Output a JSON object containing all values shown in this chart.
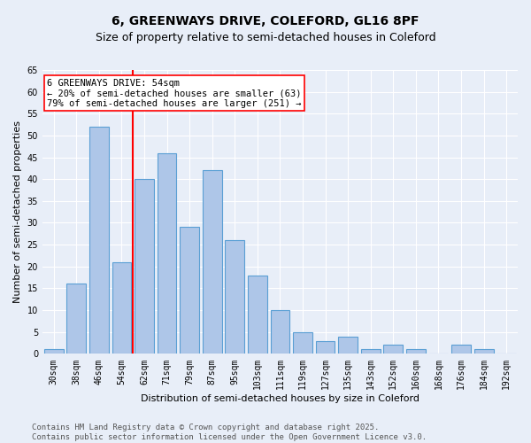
{
  "title1": "6, GREENWAYS DRIVE, COLEFORD, GL16 8PF",
  "title2": "Size of property relative to semi-detached houses in Coleford",
  "xlabel": "Distribution of semi-detached houses by size in Coleford",
  "ylabel": "Number of semi-detached properties",
  "categories": [
    "30sqm",
    "38sqm",
    "46sqm",
    "54sqm",
    "62sqm",
    "71sqm",
    "79sqm",
    "87sqm",
    "95sqm",
    "103sqm",
    "111sqm",
    "119sqm",
    "127sqm",
    "135sqm",
    "143sqm",
    "152sqm",
    "160sqm",
    "168sqm",
    "176sqm",
    "184sqm",
    "192sqm"
  ],
  "values": [
    1,
    16,
    52,
    21,
    40,
    46,
    29,
    42,
    26,
    18,
    10,
    5,
    3,
    4,
    1,
    2,
    1,
    0,
    2,
    1,
    0
  ],
  "bar_color": "#aec6e8",
  "bar_edge_color": "#5a9fd4",
  "background_color": "#e8eef8",
  "grid_color": "#ffffff",
  "annotation_text_line1": "6 GREENWAYS DRIVE: 54sqm",
  "annotation_text_line2": "← 20% of semi-detached houses are smaller (63)",
  "annotation_text_line3": "79% of semi-detached houses are larger (251) →",
  "ylim": [
    0,
    65
  ],
  "yticks": [
    0,
    5,
    10,
    15,
    20,
    25,
    30,
    35,
    40,
    45,
    50,
    55,
    60,
    65
  ],
  "footer_line1": "Contains HM Land Registry data © Crown copyright and database right 2025.",
  "footer_line2": "Contains public sector information licensed under the Open Government Licence v3.0.",
  "title_fontsize": 10,
  "subtitle_fontsize": 9,
  "axis_label_fontsize": 8,
  "tick_fontsize": 7,
  "annotation_fontsize": 7.5,
  "footer_fontsize": 6.5
}
